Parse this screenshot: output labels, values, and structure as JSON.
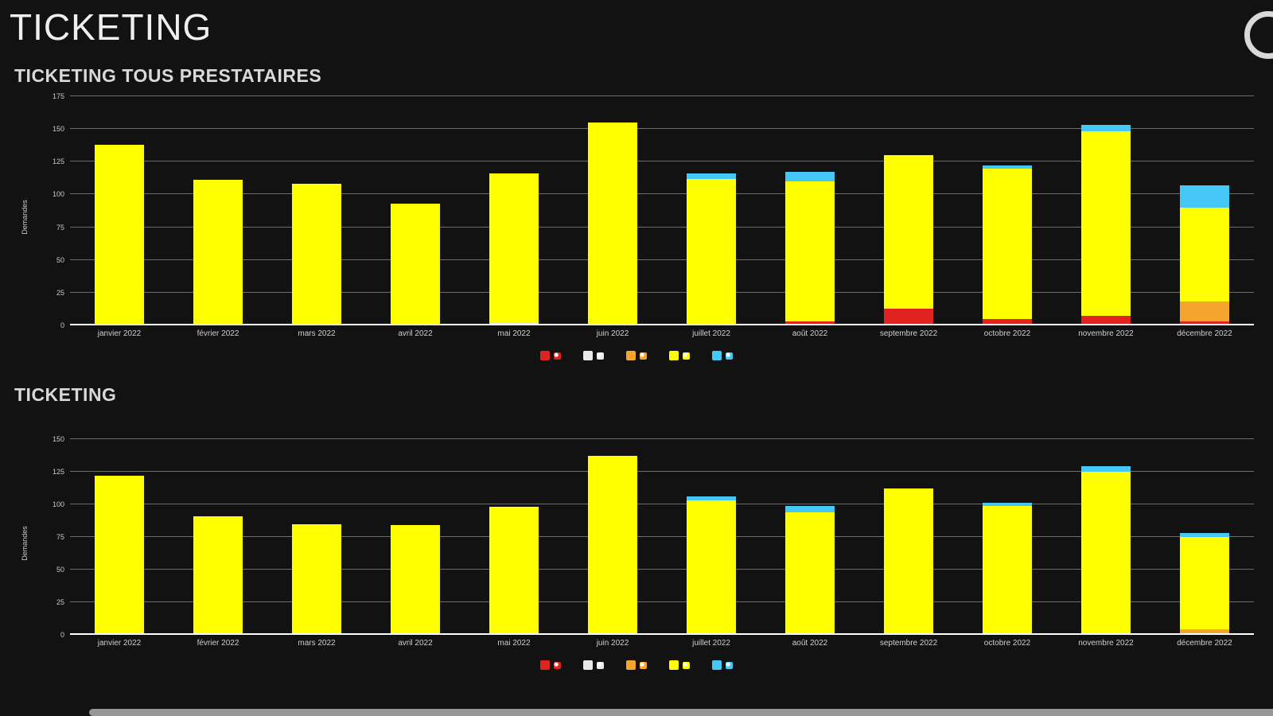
{
  "page": {
    "title": "TICKETING"
  },
  "panels": [
    {
      "title": "TICKETING TOUS PRESTATAIRES"
    },
    {
      "title": "TICKETING"
    }
  ],
  "colors": {
    "background": "#121212",
    "red": "#e0231e",
    "white_series": "#e9e9e9",
    "orange": "#f5a52e",
    "yellow": "#ffff00",
    "cyan": "#45c8f5"
  },
  "chart_data": [
    {
      "type": "bar",
      "stacked": true,
      "title": "TICKETING TOUS PRESTATAIRES",
      "xlabel": "",
      "ylabel": "Demandes",
      "ylim": [
        0,
        175
      ],
      "yticks": [
        0,
        25,
        50,
        75,
        100,
        125,
        150,
        175
      ],
      "grid": true,
      "legend_position": "bottom",
      "categories": [
        "janvier 2022",
        "février 2022",
        "mars 2022",
        "avril 2022",
        "mai 2022",
        "juin 2022",
        "juillet 2022",
        "août 2022",
        "septembre 2022",
        "octobre 2022",
        "novembre 2022",
        "décembre 2022"
      ],
      "series": [
        {
          "name": "rouge",
          "color": "#e0231e",
          "values": [
            0,
            0,
            0,
            0,
            0,
            0,
            0,
            3,
            13,
            5,
            7,
            3
          ]
        },
        {
          "name": "blanc",
          "color": "#e9e9e9",
          "values": [
            0,
            0,
            0,
            0,
            2,
            0,
            0,
            0,
            0,
            0,
            0,
            0
          ]
        },
        {
          "name": "orange",
          "color": "#f5a52e",
          "values": [
            0,
            0,
            0,
            0,
            0,
            0,
            0,
            0,
            0,
            0,
            0,
            15
          ]
        },
        {
          "name": "jaune",
          "color": "#ffff00",
          "values": [
            138,
            111,
            108,
            93,
            114,
            155,
            112,
            107,
            117,
            115,
            141,
            72
          ]
        },
        {
          "name": "cyan",
          "color": "#45c8f5",
          "values": [
            0,
            0,
            0,
            0,
            0,
            0,
            4,
            7,
            0,
            2,
            5,
            17
          ]
        }
      ]
    },
    {
      "type": "bar",
      "stacked": true,
      "title": "TICKETING",
      "xlabel": "",
      "ylabel": "Demandes",
      "ylim": [
        0,
        150
      ],
      "yticks": [
        0,
        25,
        50,
        75,
        100,
        125,
        150
      ],
      "grid": true,
      "legend_position": "bottom",
      "categories": [
        "janvier 2022",
        "février 2022",
        "mars 2022",
        "avril 2022",
        "mai 2022",
        "juin 2022",
        "juillet 2022",
        "août 2022",
        "septembre 2022",
        "octobre 2022",
        "novembre 2022",
        "décembre 2022"
      ],
      "series": [
        {
          "name": "rouge",
          "color": "#e0231e",
          "values": [
            0,
            0,
            0,
            0,
            0,
            0,
            0,
            0,
            0,
            0,
            0,
            0
          ]
        },
        {
          "name": "blanc",
          "color": "#e9e9e9",
          "values": [
            0,
            0,
            0,
            0,
            0,
            0,
            0,
            0,
            0,
            0,
            0,
            0
          ]
        },
        {
          "name": "orange",
          "color": "#f5a52e",
          "values": [
            0,
            0,
            0,
            0,
            0,
            0,
            0,
            0,
            0,
            0,
            0,
            4
          ]
        },
        {
          "name": "jaune",
          "color": "#ffff00",
          "values": [
            122,
            91,
            85,
            84,
            98,
            137,
            103,
            94,
            112,
            99,
            125,
            71
          ]
        },
        {
          "name": "cyan",
          "color": "#45c8f5",
          "values": [
            0,
            0,
            0,
            0,
            0,
            0,
            3,
            5,
            0,
            2,
            4,
            3
          ]
        }
      ]
    }
  ]
}
